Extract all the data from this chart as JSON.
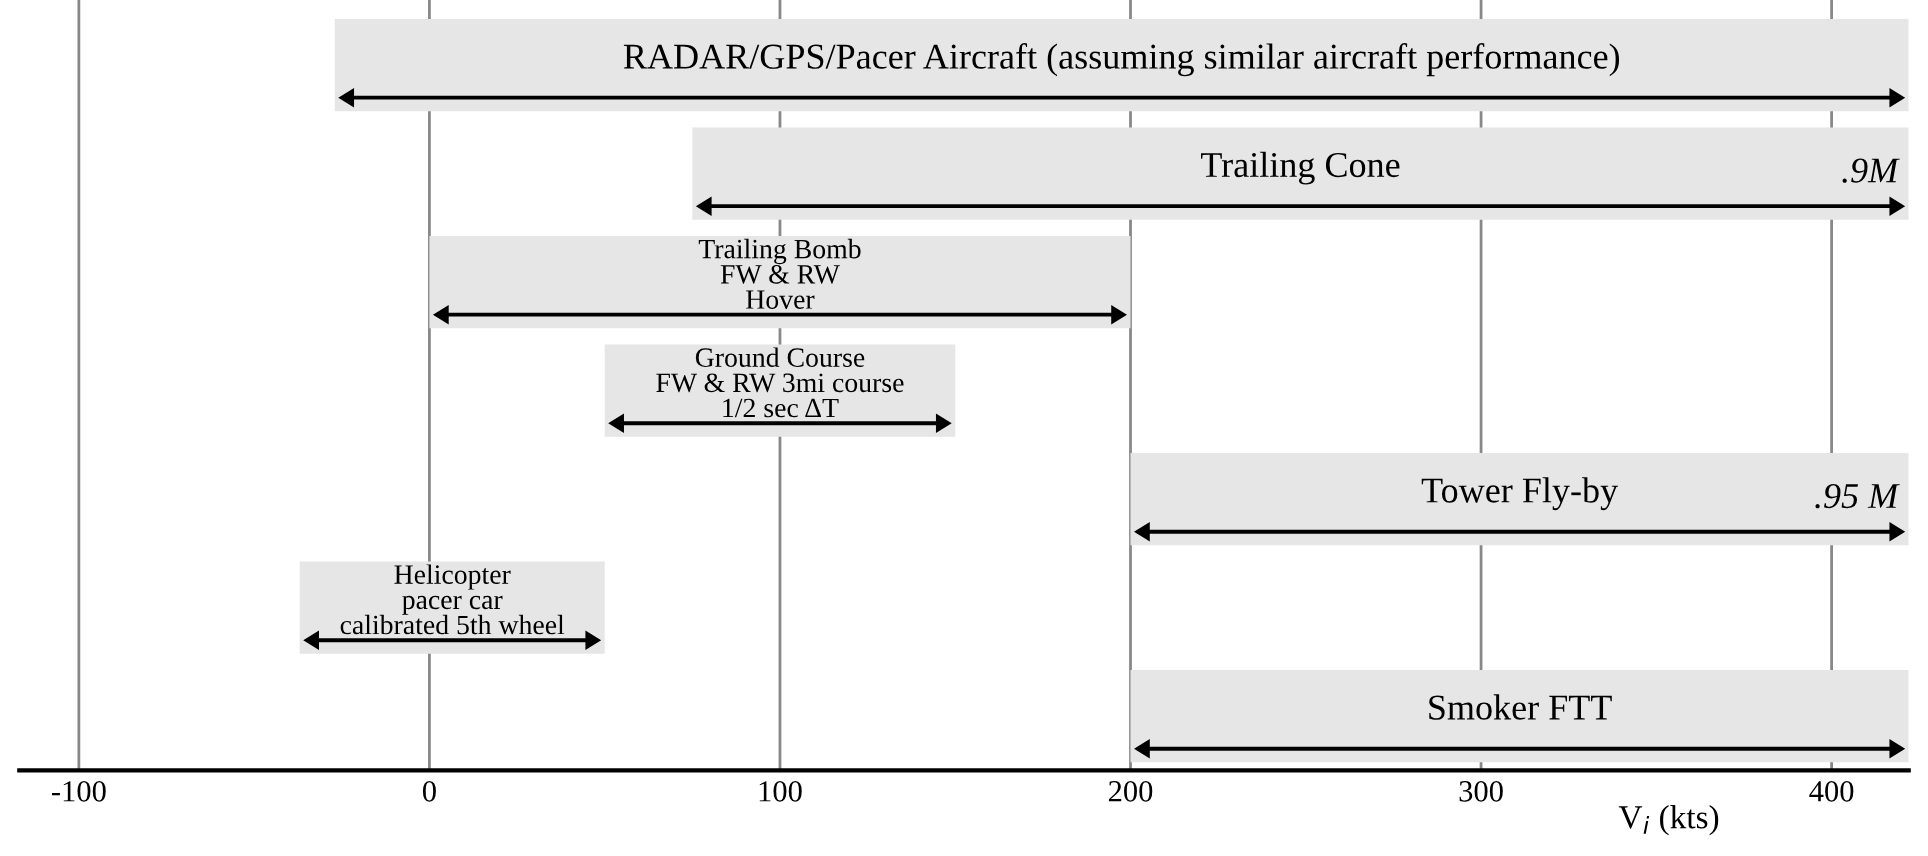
{
  "chart_data": {
    "type": "bar",
    "orientation": "horizontal",
    "categories": [
      "RADAR/GPS/Pacer Aircraft (assuming similar aircraft performance)",
      "Trailing Cone",
      "Trailing Bomb\nFW & RW\nHover",
      "Ground Course\nFW & RW 3mi course\n1/2 sec ΔT",
      "Tower Fly-by",
      "Helicopter\npacer car\ncalibrated 5th wheel",
      "Smoker FTT"
    ],
    "base": [
      -27,
      75,
      0,
      50,
      200,
      -37,
      200
    ],
    "values": [
      449,
      347,
      200,
      100,
      222,
      87,
      222
    ],
    "annotations": [
      {
        "text": ".9M",
        "x": 422,
        "y": "Trailing Cone"
      },
      {
        "text": ".95 M",
        "x": 422,
        "y": "Tower Fly-by"
      }
    ],
    "color": "#e6e6e6",
    "xlabel": "V$_{i}$ (kts)",
    "xlim": [
      -117,
      422
    ],
    "xticks": [
      -100,
      0,
      100,
      200,
      300,
      400
    ],
    "grid": "x",
    "tick_labels": "x"
  }
}
